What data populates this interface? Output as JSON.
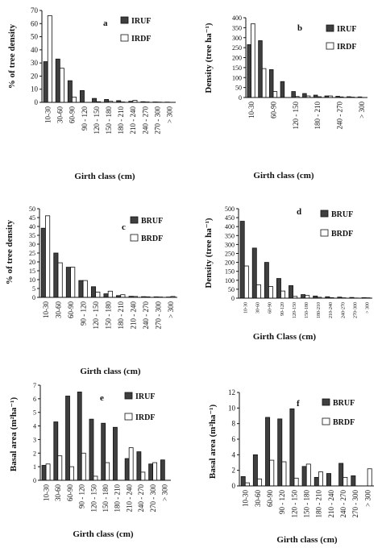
{
  "figure": {
    "colors": {
      "dark": "#3f3f3f",
      "light": "#ffffff",
      "outline": "#111111"
    },
    "categories_full": [
      "10-30",
      "30-60",
      "60-90",
      "90 - 120",
      "120 - 150",
      "150 - 180",
      "180 - 210",
      "210 - 240",
      "240 - 270",
      "270 - 300",
      "> 300"
    ]
  },
  "chart_data": [
    {
      "panel": "a",
      "type": "bar",
      "ylabel": "% of tree density",
      "xlabel": "Girth class (cm)",
      "ylim": [
        0,
        70
      ],
      "yticks": [
        0,
        10,
        20,
        30,
        40,
        50,
        60,
        70
      ],
      "categories": [
        "10-30",
        "30-60",
        "60-90",
        "90 - 120",
        "120 - 150",
        "150 - 180",
        "180 - 210",
        "210 - 240",
        "240 - 270",
        "270 - 300",
        "> 300"
      ],
      "series": [
        {
          "name": "IRUF",
          "color": "dark",
          "values": [
            31,
            33,
            16.5,
            9,
            3,
            2.2,
            1.3,
            0.8,
            0.5,
            0.3,
            0.2
          ]
        },
        {
          "name": "IRDF",
          "color": "light",
          "values": [
            66,
            26,
            4,
            0,
            0.5,
            0.8,
            0.3,
            1.5,
            0.3,
            0.2,
            0
          ]
        }
      ],
      "legend": "top-right"
    },
    {
      "panel": "b",
      "type": "bar",
      "ylabel": "Density (tree ha⁻¹)",
      "xlabel": "Girth class (cm)",
      "ylim": [
        0,
        400
      ],
      "yticks": [
        0,
        50,
        100,
        150,
        200,
        250,
        300,
        350,
        400
      ],
      "categories": [
        "10-30",
        "30-60",
        "60-90",
        "90 - 120",
        "120 - 150",
        "150 - 180",
        "180 - 210",
        "210 - 240",
        "240 - 270",
        "270 - 300",
        "> 300"
      ],
      "tick_labels": [
        "10-30",
        "",
        "60-90",
        "",
        "120 - 150",
        "",
        "180 - 210",
        "",
        "240 - 270",
        "",
        "> 300"
      ],
      "series": [
        {
          "name": "IRUF",
          "color": "dark",
          "values": [
            265,
            285,
            140,
            80,
            30,
            20,
            12,
            8,
            6,
            4,
            3
          ]
        },
        {
          "name": "IRDF",
          "color": "light",
          "values": [
            370,
            145,
            30,
            0,
            5,
            8,
            4,
            8,
            3,
            2,
            0
          ]
        }
      ],
      "legend": "top-right"
    },
    {
      "panel": "c",
      "type": "bar",
      "ylabel": "% of tree density",
      "xlabel": "Girth class (cm)",
      "ylim": [
        0,
        50
      ],
      "yticks": [
        0,
        5,
        10,
        15,
        20,
        25,
        30,
        35,
        40,
        45,
        50
      ],
      "categories": [
        "10-30",
        "30-60",
        "60-90",
        "90 - 120",
        "120 - 150",
        "150 - 180",
        "180 - 210",
        "210 - 240",
        "240 - 270",
        "270 - 300",
        "> 300"
      ],
      "series": [
        {
          "name": "BRUF",
          "color": "dark",
          "values": [
            39,
            25,
            17,
            9.5,
            6,
            2,
            1,
            0.6,
            0.4,
            0.3,
            0.2
          ]
        },
        {
          "name": "BRDF",
          "color": "light",
          "values": [
            46,
            19.5,
            17,
            9.5,
            3,
            3.5,
            1.5,
            0.5,
            0.3,
            0.2,
            0.5
          ]
        }
      ],
      "legend": "right"
    },
    {
      "panel": "d",
      "type": "bar",
      "ylabel": "Density (tree ha⁻¹)",
      "xlabel": "Girth Class (cm)",
      "ylim": [
        0,
        500
      ],
      "yticks": [
        0,
        50,
        100,
        150,
        200,
        250,
        300,
        350,
        400,
        450,
        500
      ],
      "categories": [
        "10-30",
        "30-60",
        "60-90",
        "90-120",
        "120-150",
        "150-180",
        "180-210",
        "210-240",
        "240-270",
        "270-300",
        "> 300"
      ],
      "series": [
        {
          "name": "BRUF",
          "color": "dark",
          "values": [
            430,
            280,
            200,
            110,
            70,
            20,
            12,
            8,
            6,
            4,
            3
          ]
        },
        {
          "name": "BRDF",
          "color": "light",
          "values": [
            180,
            75,
            65,
            40,
            10,
            15,
            5,
            3,
            2,
            1,
            2
          ]
        }
      ],
      "legend": "right"
    },
    {
      "panel": "e",
      "type": "bar",
      "ylabel": "Basal area (m²ha⁻¹)",
      "xlabel": "Girth class (cm)",
      "ylim": [
        0,
        7
      ],
      "yticks": [
        0,
        1,
        2,
        3,
        4,
        5,
        6,
        7
      ],
      "categories": [
        "10-30",
        "30-60",
        "60-90",
        "90 - 120",
        "120 - 150",
        "150 - 180",
        "180 - 210",
        "210 - 240",
        "240 - 270",
        "270 - 300",
        "> 300"
      ],
      "series": [
        {
          "name": "IRUF",
          "color": "dark",
          "values": [
            1.1,
            4.3,
            6.2,
            6.5,
            4.5,
            4.2,
            3.9,
            1.6,
            2.1,
            1.2,
            1.5
          ]
        },
        {
          "name": "IRDF",
          "color": "light",
          "values": [
            1.2,
            1.8,
            1.0,
            2.0,
            0.3,
            1.3,
            0,
            2.4,
            0.6,
            1.3,
            0
          ]
        }
      ],
      "legend": "top-right"
    },
    {
      "panel": "f",
      "type": "bar",
      "ylabel": "Basal area (m²ha⁻¹)",
      "xlabel": "Girth class (cm)",
      "ylim": [
        0,
        12
      ],
      "yticks": [
        0,
        2,
        4,
        6,
        8,
        10,
        12
      ],
      "categories": [
        "10-30",
        "30-60",
        "60-90",
        "90 - 120",
        "120 - 150",
        "150 - 180",
        "180 - 210",
        "210 - 240",
        "240 - 270",
        "270 - 300",
        "> 300"
      ],
      "series": [
        {
          "name": "BRUF",
          "color": "dark",
          "values": [
            1.2,
            4.0,
            8.8,
            8.6,
            9.9,
            2.5,
            1.1,
            1.6,
            2.9,
            1.3,
            0
          ]
        },
        {
          "name": "BRDF",
          "color": "light",
          "values": [
            0.4,
            0.9,
            3.3,
            3.1,
            1.0,
            2.8,
            1.8,
            0,
            1.1,
            0,
            2.2
          ]
        }
      ],
      "legend": "top-right"
    }
  ]
}
